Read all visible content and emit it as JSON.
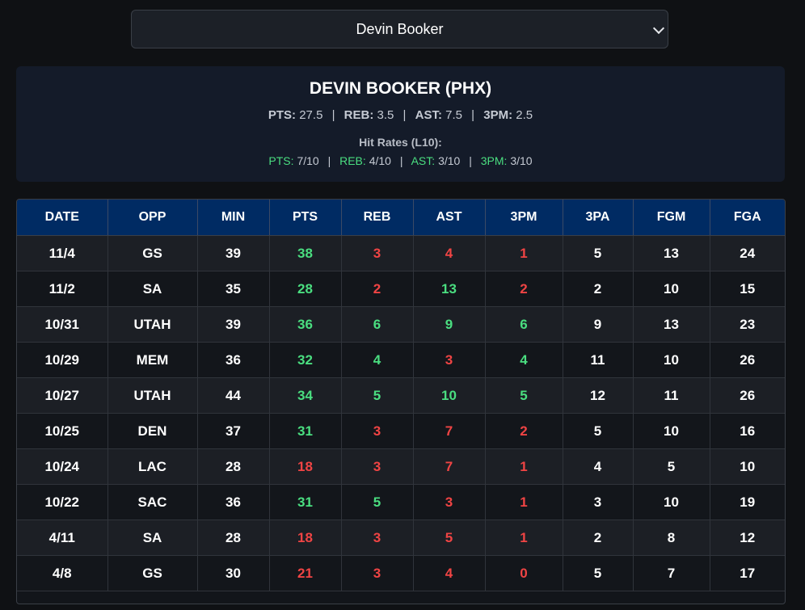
{
  "selector": {
    "value": "Devin Booker"
  },
  "player": {
    "title": "DEVIN BOOKER (PHX)",
    "averages": [
      {
        "label": "PTS:",
        "value": "27.5"
      },
      {
        "label": "REB:",
        "value": "3.5"
      },
      {
        "label": "AST:",
        "value": "7.5"
      },
      {
        "label": "3PM:",
        "value": "2.5"
      }
    ],
    "hit_rates_heading": "Hit Rates (L10):",
    "hit_rates": [
      {
        "label": "PTS:",
        "value": "7/10"
      },
      {
        "label": "REB:",
        "value": "4/10"
      },
      {
        "label": "AST:",
        "value": "3/10"
      },
      {
        "label": "3PM:",
        "value": "3/10"
      }
    ],
    "separator": "|"
  },
  "colors": {
    "hit": "#4ade80",
    "miss": "#f04444",
    "header_bg": "#002b63"
  },
  "table": {
    "columns": [
      "DATE",
      "OPP",
      "MIN",
      "PTS",
      "REB",
      "AST",
      "3PM",
      "3PA",
      "FGM",
      "FGA"
    ],
    "rows": [
      {
        "cells": [
          "11/4",
          "GS",
          "39",
          "38",
          "3",
          "4",
          "1",
          "5",
          "13",
          "24"
        ],
        "hit": {
          "PTS": true,
          "REB": false,
          "AST": false,
          "3PM": false
        }
      },
      {
        "cells": [
          "11/2",
          "SA",
          "35",
          "28",
          "2",
          "13",
          "2",
          "2",
          "10",
          "15"
        ],
        "hit": {
          "PTS": true,
          "REB": false,
          "AST": true,
          "3PM": false
        }
      },
      {
        "cells": [
          "10/31",
          "UTAH",
          "39",
          "36",
          "6",
          "9",
          "6",
          "9",
          "13",
          "23"
        ],
        "hit": {
          "PTS": true,
          "REB": true,
          "AST": true,
          "3PM": true
        }
      },
      {
        "cells": [
          "10/29",
          "MEM",
          "36",
          "32",
          "4",
          "3",
          "4",
          "11",
          "10",
          "26"
        ],
        "hit": {
          "PTS": true,
          "REB": true,
          "AST": false,
          "3PM": true
        }
      },
      {
        "cells": [
          "10/27",
          "UTAH",
          "44",
          "34",
          "5",
          "10",
          "5",
          "12",
          "11",
          "26"
        ],
        "hit": {
          "PTS": true,
          "REB": true,
          "AST": true,
          "3PM": true
        }
      },
      {
        "cells": [
          "10/25",
          "DEN",
          "37",
          "31",
          "3",
          "7",
          "2",
          "5",
          "10",
          "16"
        ],
        "hit": {
          "PTS": true,
          "REB": false,
          "AST": false,
          "3PM": false
        }
      },
      {
        "cells": [
          "10/24",
          "LAC",
          "28",
          "18",
          "3",
          "7",
          "1",
          "4",
          "5",
          "10"
        ],
        "hit": {
          "PTS": false,
          "REB": false,
          "AST": false,
          "3PM": false
        }
      },
      {
        "cells": [
          "10/22",
          "SAC",
          "36",
          "31",
          "5",
          "3",
          "1",
          "3",
          "10",
          "19"
        ],
        "hit": {
          "PTS": true,
          "REB": true,
          "AST": false,
          "3PM": false
        }
      },
      {
        "cells": [
          "4/11",
          "SA",
          "28",
          "18",
          "3",
          "5",
          "1",
          "2",
          "8",
          "12"
        ],
        "hit": {
          "PTS": false,
          "REB": false,
          "AST": false,
          "3PM": false
        }
      },
      {
        "cells": [
          "4/8",
          "GS",
          "30",
          "21",
          "3",
          "4",
          "0",
          "5",
          "7",
          "17"
        ],
        "hit": {
          "PTS": false,
          "REB": false,
          "AST": false,
          "3PM": false
        }
      }
    ]
  }
}
